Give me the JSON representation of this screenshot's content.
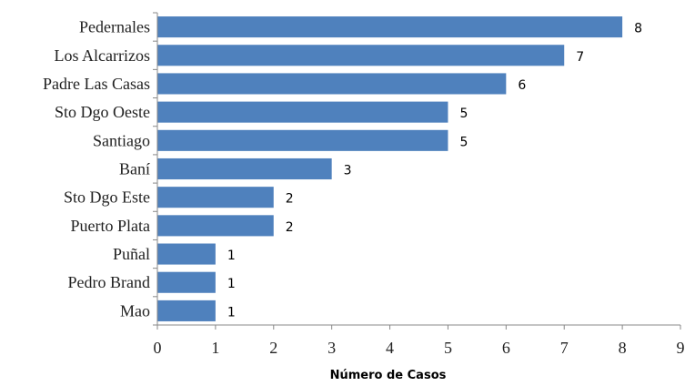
{
  "chart_data": {
    "type": "bar",
    "orientation": "horizontal",
    "categories": [
      "Pedernales",
      "Los Alcarrizos",
      "Padre Las Casas",
      "Sto Dgo  Oeste",
      "Santiago",
      "Baní",
      "Sto Dgo  Este",
      "Puerto Plata",
      "Puñal",
      "Pedro Brand",
      "Mao"
    ],
    "values": [
      8,
      7,
      6,
      5,
      5,
      3,
      2,
      2,
      1,
      1,
      1
    ],
    "data_labels": [
      "8",
      "7",
      "6",
      "5",
      "5",
      "3",
      "2",
      "2",
      "1",
      "1",
      "1"
    ],
    "xlabel": "Número de Casos",
    "ylabel": "",
    "xlim": [
      0,
      9
    ],
    "x_ticks": [
      "0",
      "1",
      "2",
      "3",
      "4",
      "5",
      "6",
      "7",
      "8",
      "9"
    ],
    "grid": false,
    "legend": "none",
    "colors": {
      "bar": "#4F81BD",
      "axis": "#888888"
    }
  }
}
